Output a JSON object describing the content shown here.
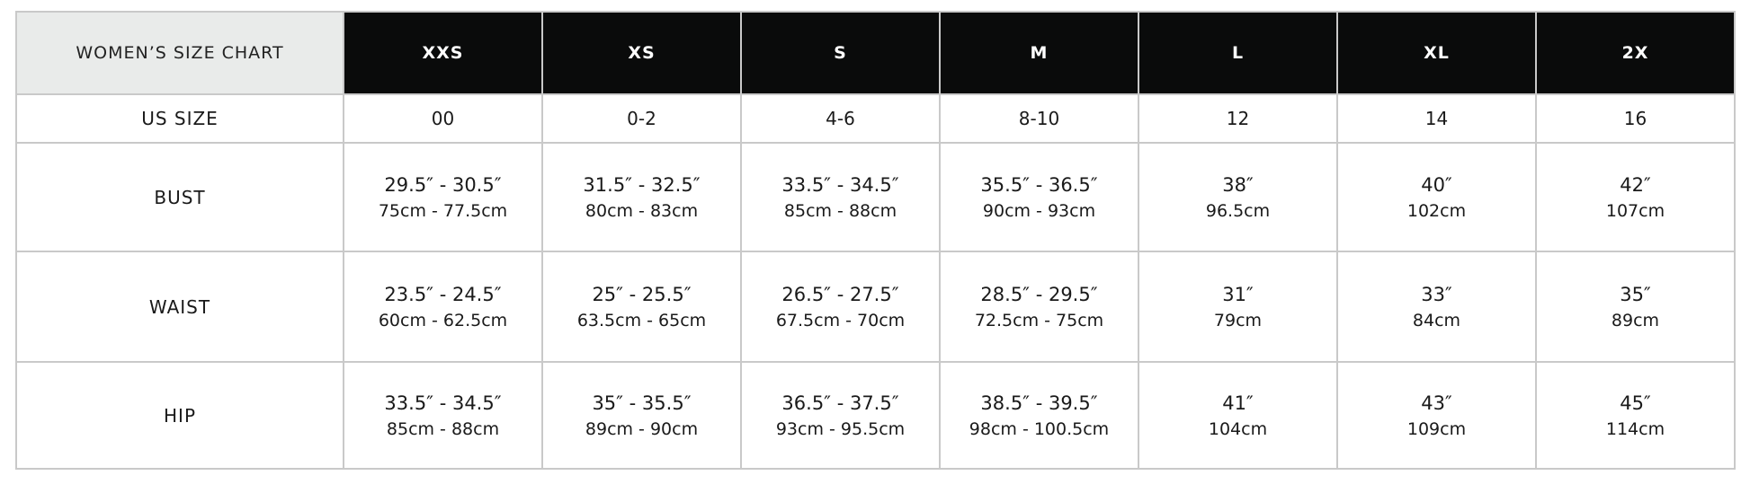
{
  "title": "WOMEN’S SIZE CHART",
  "sizes": [
    "XXS",
    "XS",
    "S",
    "M",
    "L",
    "XL",
    "2X"
  ],
  "us_size": {
    "label": "US SIZE",
    "values": [
      "00",
      "0-2",
      "4-6",
      "8-10",
      "12",
      "14",
      "16"
    ]
  },
  "rows": [
    {
      "label": "BUST",
      "inches": [
        "29.5″ - 30.5″",
        "31.5″ - 32.5″",
        "33.5″ - 34.5″",
        "35.5″ - 36.5″",
        "38″",
        "40″",
        "42″"
      ],
      "cm": [
        "75cm - 77.5cm",
        "80cm - 83cm",
        "85cm - 88cm",
        "90cm - 93cm",
        "96.5cm",
        "102cm",
        "107cm"
      ]
    },
    {
      "label": "WAIST",
      "inches": [
        "23.5″ - 24.5″",
        "25″ - 25.5″",
        "26.5″ - 27.5″",
        "28.5″ - 29.5″",
        "31″",
        "33″",
        "35″"
      ],
      "cm": [
        "60cm - 62.5cm",
        "63.5cm - 65cm",
        "67.5cm - 70cm",
        "72.5cm - 75cm",
        "79cm",
        "84cm",
        "89cm"
      ]
    },
    {
      "label": "HIP",
      "inches": [
        "33.5″ - 34.5″",
        "35″ - 35.5″",
        "36.5″ - 37.5″",
        "38.5″ - 39.5″",
        "41″",
        "43″",
        "45″"
      ],
      "cm": [
        "85cm - 88cm",
        "89cm - 90cm",
        "93cm - 95.5cm",
        "98cm - 100.5cm",
        "104cm",
        "109cm",
        "114cm"
      ]
    }
  ],
  "colors": {
    "header_bg": "#0a0b0b",
    "title_bg": "#e9ebea",
    "border": "#c9c9c9"
  }
}
